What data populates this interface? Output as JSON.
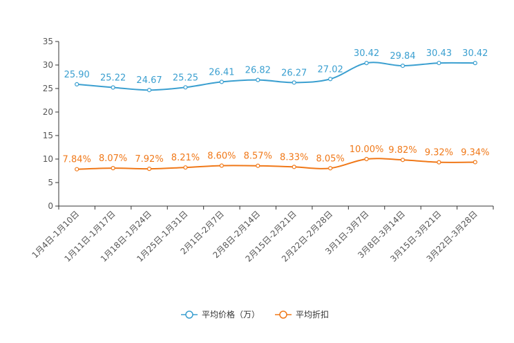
{
  "chart_data": {
    "type": "line",
    "title": "",
    "xlabel": "",
    "ylabel": "",
    "ylim": [
      0,
      35
    ],
    "yticks": [
      "0",
      "5",
      "10",
      "15",
      "20",
      "25",
      "30",
      "35"
    ],
    "grid": false,
    "legend_position": "bottom",
    "categories": [
      "1月4日-1月10日",
      "1月11日-1月17日",
      "1月18日-1月24日",
      "1月25日-1月31日",
      "2月1日-2月7日",
      "2月8日-2月14日",
      "2月15日-2月21日",
      "2月22日-2月28日",
      "3月1日-3月7日",
      "3月8日-3月14日",
      "3月15日-3月21日",
      "3月22日-3月28日"
    ],
    "series": [
      {
        "name": "平均价格（万）",
        "color": "#3a9fd0",
        "values": [
          25.9,
          25.22,
          24.67,
          25.25,
          26.41,
          26.82,
          26.27,
          27.02,
          30.42,
          29.84,
          30.43,
          30.42
        ],
        "labels": [
          "25.90",
          "25.22",
          "24.67",
          "25.25",
          "26.41",
          "26.82",
          "26.27",
          "27.02",
          "30.42",
          "29.84",
          "30.43",
          "30.42"
        ]
      },
      {
        "name": "平均折扣",
        "color": "#f07818",
        "values": [
          7.84,
          8.07,
          7.92,
          8.21,
          8.6,
          8.57,
          8.33,
          8.05,
          10.0,
          9.82,
          9.32,
          9.34
        ],
        "labels": [
          "7.84%",
          "8.07%",
          "7.92%",
          "8.21%",
          "8.60%",
          "8.57%",
          "8.33%",
          "8.05%",
          "10.00%",
          "9.82%",
          "9.32%",
          "9.34%"
        ]
      }
    ]
  }
}
